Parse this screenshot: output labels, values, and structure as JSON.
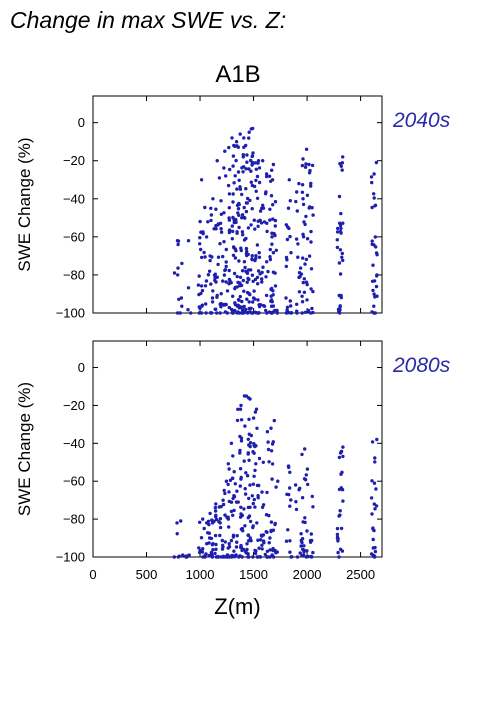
{
  "figure": {
    "title": "Change in max SWE vs. Z:",
    "scenario": "A1B"
  },
  "colors": {
    "points": "#1f1fae",
    "period_label": "#2a2aa8"
  },
  "chart_data": [
    {
      "type": "scatter",
      "period": "2040s",
      "ylabel": "SWE Change (%)",
      "xlabel": "",
      "xlim": [
        0,
        2700
      ],
      "ylim": [
        -100,
        14
      ],
      "xticks": [
        0,
        500,
        1000,
        1500,
        2000,
        2500
      ],
      "yticks": [
        0,
        -20,
        -40,
        -60,
        -80,
        -100
      ],
      "show_xtick_labels": false,
      "columns": [
        {
          "z": 780,
          "n": 6,
          "ymin": -100,
          "ymax": -62
        },
        {
          "z": 810,
          "n": 6,
          "ymin": -100,
          "ymax": -64
        },
        {
          "z": 900,
          "n": 4,
          "ymin": -100,
          "ymax": -62
        },
        {
          "z": 1000,
          "n": 10,
          "ymin": -100,
          "ymax": -52
        },
        {
          "z": 1020,
          "n": 12,
          "ymin": -100,
          "ymax": -30
        },
        {
          "z": 1050,
          "n": 8,
          "ymin": -100,
          "ymax": -60
        },
        {
          "z": 1090,
          "n": 12,
          "ymin": -100,
          "ymax": -45
        },
        {
          "z": 1130,
          "n": 14,
          "ymin": -100,
          "ymax": -40
        },
        {
          "z": 1170,
          "n": 16,
          "ymin": -100,
          "ymax": -20
        },
        {
          "z": 1210,
          "n": 16,
          "ymin": -100,
          "ymax": -15
        },
        {
          "z": 1250,
          "n": 18,
          "ymin": -100,
          "ymax": -28
        },
        {
          "z": 1290,
          "n": 22,
          "ymin": -100,
          "ymax": -12
        },
        {
          "z": 1320,
          "n": 22,
          "ymin": -100,
          "ymax": -8
        },
        {
          "z": 1350,
          "n": 24,
          "ymin": -100,
          "ymax": -10
        },
        {
          "z": 1380,
          "n": 26,
          "ymin": -100,
          "ymax": -6
        },
        {
          "z": 1410,
          "n": 26,
          "ymin": -100,
          "ymax": -8
        },
        {
          "z": 1440,
          "n": 24,
          "ymin": -100,
          "ymax": -12
        },
        {
          "z": 1470,
          "n": 22,
          "ymin": -100,
          "ymax": -5
        },
        {
          "z": 1500,
          "n": 22,
          "ymin": -100,
          "ymax": -3
        },
        {
          "z": 1530,
          "n": 18,
          "ymin": -100,
          "ymax": -20
        },
        {
          "z": 1560,
          "n": 14,
          "ymin": -100,
          "ymax": -45
        },
        {
          "z": 1600,
          "n": 18,
          "ymin": -100,
          "ymax": -20
        },
        {
          "z": 1650,
          "n": 16,
          "ymin": -100,
          "ymax": -25
        },
        {
          "z": 1680,
          "n": 20,
          "ymin": -100,
          "ymax": -22
        },
        {
          "z": 1700,
          "n": 12,
          "ymin": -100,
          "ymax": -30
        },
        {
          "z": 1830,
          "n": 22,
          "ymin": -100,
          "ymax": -30
        },
        {
          "z": 1920,
          "n": 16,
          "ymin": -100,
          "ymax": -32
        },
        {
          "z": 1980,
          "n": 28,
          "ymin": -100,
          "ymax": -14
        },
        {
          "z": 2030,
          "n": 22,
          "ymin": -100,
          "ymax": -22
        },
        {
          "z": 2310,
          "n": 32,
          "ymin": -100,
          "ymax": -18
        },
        {
          "z": 2630,
          "n": 30,
          "ymin": -100,
          "ymax": -21
        }
      ]
    },
    {
      "type": "scatter",
      "period": "2080s",
      "ylabel": "SWE Change (%)",
      "xlabel": "Z(m)",
      "xlim": [
        0,
        2700
      ],
      "ylim": [
        -100,
        14
      ],
      "xticks": [
        0,
        500,
        1000,
        1500,
        2000,
        2500
      ],
      "yticks": [
        0,
        -20,
        -40,
        -60,
        -80,
        -100
      ],
      "show_xtick_labels": true,
      "columns": [
        {
          "z": 780,
          "n": 3,
          "ymin": -100,
          "ymax": -82
        },
        {
          "z": 810,
          "n": 3,
          "ymin": -100,
          "ymax": -81
        },
        {
          "z": 850,
          "n": 3,
          "ymin": -100,
          "ymax": -99
        },
        {
          "z": 900,
          "n": 3,
          "ymin": -100,
          "ymax": -99
        },
        {
          "z": 1000,
          "n": 8,
          "ymin": -100,
          "ymax": -80
        },
        {
          "z": 1050,
          "n": 8,
          "ymin": -100,
          "ymax": -82
        },
        {
          "z": 1090,
          "n": 10,
          "ymin": -100,
          "ymax": -77
        },
        {
          "z": 1130,
          "n": 12,
          "ymin": -100,
          "ymax": -78
        },
        {
          "z": 1170,
          "n": 12,
          "ymin": -100,
          "ymax": -72
        },
        {
          "z": 1210,
          "n": 14,
          "ymin": -100,
          "ymax": -70
        },
        {
          "z": 1250,
          "n": 14,
          "ymin": -100,
          "ymax": -60
        },
        {
          "z": 1290,
          "n": 16,
          "ymin": -100,
          "ymax": -40
        },
        {
          "z": 1320,
          "n": 18,
          "ymin": -100,
          "ymax": -55
        },
        {
          "z": 1360,
          "n": 20,
          "ymin": -100,
          "ymax": -20
        },
        {
          "z": 1400,
          "n": 20,
          "ymin": -100,
          "ymax": -22
        },
        {
          "z": 1440,
          "n": 22,
          "ymin": -100,
          "ymax": -15
        },
        {
          "z": 1480,
          "n": 20,
          "ymin": -100,
          "ymax": -16
        },
        {
          "z": 1510,
          "n": 18,
          "ymin": -100,
          "ymax": -22
        },
        {
          "z": 1550,
          "n": 14,
          "ymin": -100,
          "ymax": -48
        },
        {
          "z": 1600,
          "n": 14,
          "ymin": -100,
          "ymax": -50
        },
        {
          "z": 1650,
          "n": 14,
          "ymin": -100,
          "ymax": -32
        },
        {
          "z": 1680,
          "n": 14,
          "ymin": -100,
          "ymax": -28
        },
        {
          "z": 1700,
          "n": 8,
          "ymin": -100,
          "ymax": -60
        },
        {
          "z": 1830,
          "n": 14,
          "ymin": -100,
          "ymax": -52
        },
        {
          "z": 1920,
          "n": 10,
          "ymin": -100,
          "ymax": -62
        },
        {
          "z": 1980,
          "n": 22,
          "ymin": -100,
          "ymax": -43
        },
        {
          "z": 2030,
          "n": 10,
          "ymin": -100,
          "ymax": -68
        },
        {
          "z": 2310,
          "n": 26,
          "ymin": -100,
          "ymax": -42
        },
        {
          "z": 2630,
          "n": 24,
          "ymin": -100,
          "ymax": -38
        }
      ]
    }
  ]
}
